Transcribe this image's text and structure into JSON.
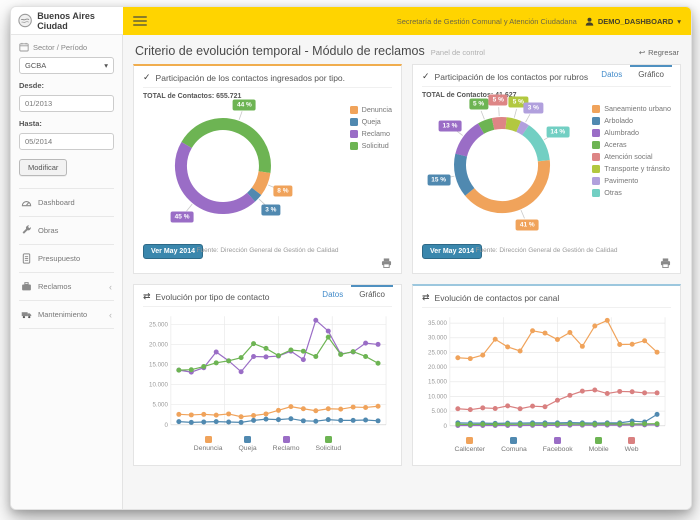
{
  "navbar": {
    "brand": "Buenos Aires Ciudad",
    "org": "Secretaría de Gestión Comunal y Atención Ciudadana",
    "user": "DEMO_DASHBOARD",
    "user_caret": "▾"
  },
  "page_header": {
    "title": "Criterio de evolución temporal - Módulo de reclamos",
    "subtitle": "Panel de control",
    "back": "Regresar",
    "back_icon": "↩"
  },
  "sidebar": {
    "section": "Sector / Período",
    "select_value": "GCBA",
    "select_caret": "▾",
    "from_label": "Desde:",
    "from_value": "01/2013",
    "to_label": "Hasta:",
    "to_value": "05/2014",
    "button": "Modificar",
    "menu": [
      {
        "label": "Dashboard",
        "icon": "gauge-icon",
        "chevron": false
      },
      {
        "label": "Obras",
        "icon": "wrench-icon",
        "chevron": false
      },
      {
        "label": "Presupuesto",
        "icon": "document-icon",
        "chevron": false
      },
      {
        "label": "Reclamos",
        "icon": "briefcase-icon",
        "chevron": true
      },
      {
        "label": "Mantenimiento",
        "icon": "truck-icon",
        "chevron": true
      }
    ],
    "chevron_glyph": "‹"
  },
  "panels": {
    "tipo": {
      "title": "Participación de los contactos ingresados por tipo.",
      "total_label": "TOTAL de Contactos:",
      "total_value": "655.721",
      "button": "Ver May 2014",
      "source": "Fuente: Dirección General de Gestión de Calidad"
    },
    "rubros": {
      "title": "Participación de los contactos por rubros",
      "tabs": [
        "Datos",
        "Gráfico"
      ],
      "total_label": "TOTAL de Contactos:",
      "total_value": "41.627",
      "button": "Ver May 2014",
      "source": "Fuente: Dirección General de Gestión de Calidad"
    },
    "evol_tipo": {
      "title": "Evolución por tipo de contacto",
      "tabs": [
        "Datos",
        "Gráfico"
      ]
    },
    "evol_canal": {
      "title": "Evolución de contactos por canal"
    }
  },
  "colors": {
    "header_yellow": "#ffd400",
    "button_blue": "#3a87ad",
    "tab_link_blue": "#428bca",
    "panel_top_orange": "#f0ad4e",
    "panel_top_blue": "#9cc7de",
    "orange": "#f0a35b",
    "blue": "#5089b0",
    "purple": "#9a6dc6",
    "green": "#6db453",
    "red": "#d98080",
    "yellow_green": "#b2c83f",
    "light_purple": "#b1a0dd",
    "teal": "#72cfc3"
  },
  "chart_data": [
    {
      "id": "donut-tipo",
      "type": "pie",
      "donut": true,
      "title": "Participación de los contactos ingresados por tipo.",
      "total_contacts": "655.721",
      "start_angle": -60,
      "slices": [
        {
          "label": "Solicitud",
          "pct": 44,
          "color": "#6db453"
        },
        {
          "label": "Denuncia",
          "pct": 8,
          "color": "#f0a35b"
        },
        {
          "label": "Queja",
          "pct": 3,
          "color": "#5089b0"
        },
        {
          "label": "Reclamo",
          "pct": 45,
          "color": "#9a6dc6"
        }
      ],
      "legend_order": [
        "Denuncia",
        "Queja",
        "Reclamo",
        "Solicitud"
      ],
      "legend_position": "right",
      "source": "Fuente: Dirección General de Gestión de Calidad"
    },
    {
      "id": "donut-rubros",
      "type": "pie",
      "donut": true,
      "title": "Participación de los contactos por rubros",
      "total_contacts": "41.627",
      "start_angle": -30,
      "slices": [
        {
          "label": "Aceras",
          "pct": 5,
          "color": "#6db453"
        },
        {
          "label": "Atención social",
          "pct": 5,
          "color": "#dd8585"
        },
        {
          "label": "Transporte y tránsito",
          "pct": 5,
          "color": "#b2c83f"
        },
        {
          "label": "Pavimento",
          "pct": 3,
          "color": "#b1a0dd"
        },
        {
          "label": "Otras",
          "pct": 14,
          "color": "#72cfc3"
        },
        {
          "label": "Saneamiento urbano",
          "pct": 41,
          "color": "#f0a35b"
        },
        {
          "label": "Arbolado",
          "pct": 15,
          "color": "#5089b0"
        },
        {
          "label": "Alumbrado",
          "pct": 13,
          "color": "#9a6dc6"
        }
      ],
      "legend_order": [
        "Saneamiento urbano",
        "Arbolado",
        "Alumbrado",
        "Aceras",
        "Atención social",
        "Transporte y tránsito",
        "Pavimento",
        "Otras"
      ],
      "legend_position": "right",
      "source": "Fuente: Dirección General de Gestión de Calidad"
    },
    {
      "id": "line-tipo",
      "type": "line",
      "title": "Evolución por tipo de contacto",
      "x_span": "01/2013 a 05/2014",
      "points": 17,
      "ylim": [
        0,
        27000
      ],
      "yticks": [
        0,
        5000,
        10000,
        15000,
        20000,
        25000
      ],
      "grid": true,
      "legend_position": "bottom",
      "series": [
        {
          "name": "Denuncia",
          "color": "#f0a35b",
          "values": [
            2600,
            2450,
            2600,
            2400,
            2700,
            2000,
            2300,
            2700,
            3600,
            4500,
            4000,
            3500,
            4000,
            3900,
            4400,
            4300,
            4600
          ]
        },
        {
          "name": "Queja",
          "color": "#5089b0",
          "values": [
            800,
            600,
            700,
            800,
            700,
            600,
            1100,
            1400,
            1300,
            1500,
            1000,
            900,
            1300,
            1100,
            1100,
            1200,
            1000
          ]
        },
        {
          "name": "Reclamo",
          "color": "#9a6dc6",
          "values": [
            13600,
            13100,
            14200,
            18100,
            15900,
            13200,
            17000,
            16900,
            17100,
            18300,
            16200,
            26000,
            23300,
            17600,
            18100,
            20300,
            20000
          ]
        },
        {
          "name": "Solicitud",
          "color": "#6db453",
          "values": [
            13600,
            13700,
            14500,
            15400,
            15900,
            16700,
            20200,
            19000,
            17200,
            18600,
            18300,
            17000,
            21800,
            17500,
            18200,
            17000,
            15300
          ]
        }
      ]
    },
    {
      "id": "line-canal",
      "type": "line",
      "title": "Evolución de contactos por canal",
      "x_span": "01/2013 a 05/2014",
      "points": 17,
      "ylim": [
        0,
        37000
      ],
      "yticks": [
        0,
        5000,
        10000,
        15000,
        20000,
        25000,
        30000,
        35000
      ],
      "grid": true,
      "legend_position": "bottom",
      "series": [
        {
          "name": "Callcenter",
          "color": "#f0a35b",
          "values": [
            23200,
            22900,
            24100,
            29500,
            26900,
            25500,
            32400,
            31600,
            29400,
            31800,
            27100,
            34000,
            35900,
            27700,
            27800,
            29000,
            25100
          ]
        },
        {
          "name": "Comuna",
          "color": "#5089b0",
          "values": [
            1000,
            900,
            900,
            800,
            900,
            900,
            1000,
            1000,
            1000,
            1100,
            1000,
            900,
            1000,
            1000,
            1600,
            1300,
            3900
          ]
        },
        {
          "name": "Facebook",
          "color": "#9a6dc6",
          "values": [
            100,
            100,
            100,
            100,
            100,
            100,
            150,
            150,
            150,
            200,
            200,
            200,
            250,
            250,
            300,
            300,
            350
          ]
        },
        {
          "name": "Mobile",
          "color": "#6db453",
          "values": [
            500,
            450,
            500,
            480,
            500,
            520,
            550,
            560,
            570,
            600,
            580,
            560,
            600,
            620,
            640,
            650,
            700
          ]
        },
        {
          "name": "Web",
          "color": "#d98080",
          "values": [
            5800,
            5500,
            6100,
            5900,
            6800,
            5800,
            6700,
            6500,
            8700,
            10400,
            11800,
            12200,
            11000,
            11700,
            11600,
            11200,
            11200
          ]
        }
      ]
    }
  ]
}
